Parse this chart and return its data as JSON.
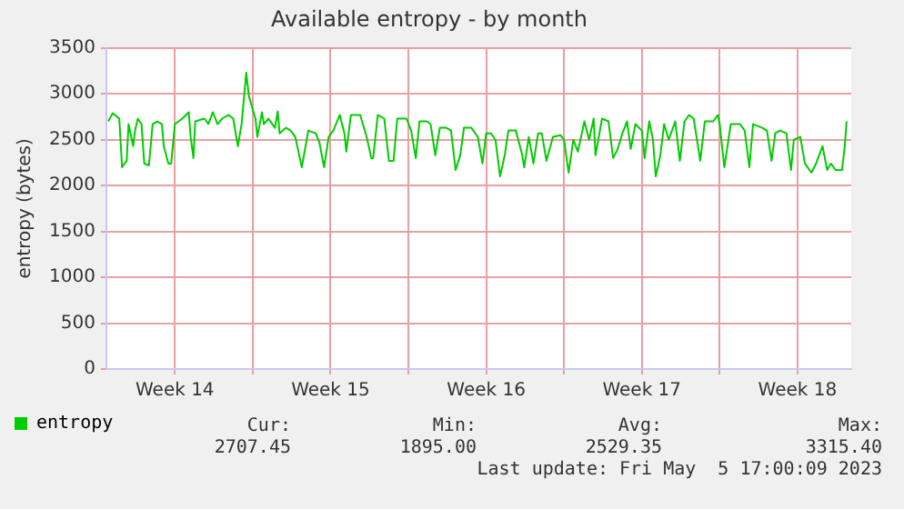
{
  "chart_data": {
    "type": "line",
    "title": "Available entropy - by month",
    "ylabel": "entropy (bytes)",
    "xlim": [
      "2023-04-03T12:00",
      "2023-05-07T00:00"
    ],
    "xticks": [
      {
        "value": "2023-04-06T14:00",
        "label": "Week 14"
      },
      {
        "value": "2023-04-10T02:00",
        "label": null
      },
      {
        "value": "2023-04-13T14:00",
        "label": "Week 15"
      },
      {
        "value": "2023-04-17T02:00",
        "label": null
      },
      {
        "value": "2023-04-20T14:00",
        "label": "Week 16"
      },
      {
        "value": "2023-04-24T02:00",
        "label": null
      },
      {
        "value": "2023-04-27T14:00",
        "label": "Week 17"
      },
      {
        "value": "2023-05-01T02:00",
        "label": null
      },
      {
        "value": "2023-05-04T14:00",
        "label": "Week 18"
      }
    ],
    "ylim": [
      0,
      3500
    ],
    "yticks": [
      0,
      500,
      1000,
      1500,
      2000,
      2500,
      3000,
      3500
    ],
    "grid": true,
    "legend": "bottom left",
    "marker": "none",
    "line_style": "solid",
    "series": [
      {
        "name": "entropy",
        "color": "#00cc00",
        "x": [
          "2023-04-03T14:00",
          "2023-04-03T19:00",
          "2023-04-04T02:00",
          "2023-04-04T05:00",
          "2023-04-04T10:00",
          "2023-04-04T12:00",
          "2023-04-04T17:00",
          "2023-04-04T19:00",
          "2023-04-04T22:00",
          "2023-04-05T02:00",
          "2023-04-05T05:00",
          "2023-04-05T10:00",
          "2023-04-05T14:00",
          "2023-04-05T19:00",
          "2023-04-06T00:00",
          "2023-04-06T02:00",
          "2023-04-06T07:00",
          "2023-04-06T10:00",
          "2023-04-06T14:00",
          "2023-04-06T22:00",
          "2023-04-07T05:00",
          "2023-04-07T07:00",
          "2023-04-07T10:00",
          "2023-04-07T12:00",
          "2023-04-07T22:00",
          "2023-04-08T02:00",
          "2023-04-08T07:00",
          "2023-04-08T12:00",
          "2023-04-08T17:00",
          "2023-04-09T00:00",
          "2023-04-09T05:00",
          "2023-04-09T10:00",
          "2023-04-09T14:00",
          "2023-04-09T19:00",
          "2023-04-09T22:00",
          "2023-04-10T05:00",
          "2023-04-10T07:00",
          "2023-04-10T12:00",
          "2023-04-10T14:00",
          "2023-04-10T19:00",
          "2023-04-11T02:00",
          "2023-04-11T05:00",
          "2023-04-11T07:00",
          "2023-04-11T14:00",
          "2023-04-11T19:00",
          "2023-04-12T00:00",
          "2023-04-12T07:00",
          "2023-04-12T14:00",
          "2023-04-12T22:00",
          "2023-04-13T02:00",
          "2023-04-13T07:00",
          "2023-04-13T12:00",
          "2023-04-13T17:00",
          "2023-04-14T00:00",
          "2023-04-14T05:00",
          "2023-04-14T07:00",
          "2023-04-14T12:00",
          "2023-04-14T22:00",
          "2023-04-15T05:00",
          "2023-04-15T10:00",
          "2023-04-15T12:00",
          "2023-04-15T17:00",
          "2023-04-16T00:00",
          "2023-04-16T05:00",
          "2023-04-16T10:00",
          "2023-04-16T14:00",
          "2023-04-17T00:00",
          "2023-04-17T05:00",
          "2023-04-17T10:00",
          "2023-04-17T14:00",
          "2023-04-17T22:00",
          "2023-04-18T02:00",
          "2023-04-18T07:00",
          "2023-04-18T12:00",
          "2023-04-18T19:00",
          "2023-04-19T00:00",
          "2023-04-19T05:00",
          "2023-04-19T10:00",
          "2023-04-19T14:00",
          "2023-04-19T22:00",
          "2023-04-20T05:00",
          "2023-04-20T10:00",
          "2023-04-20T14:00",
          "2023-04-20T19:00",
          "2023-04-21T00:00",
          "2023-04-21T05:00",
          "2023-04-21T10:00",
          "2023-04-21T14:00",
          "2023-04-21T22:00",
          "2023-04-22T05:00",
          "2023-04-22T07:00",
          "2023-04-22T12:00",
          "2023-04-22T17:00",
          "2023-04-22T22:00",
          "2023-04-23T02:00",
          "2023-04-23T07:00",
          "2023-04-23T14:00",
          "2023-04-23T22:00",
          "2023-04-24T02:00",
          "2023-04-24T07:00",
          "2023-04-24T12:00",
          "2023-04-24T17:00",
          "2023-04-25T00:00",
          "2023-04-25T05:00",
          "2023-04-25T10:00",
          "2023-04-25T12:00",
          "2023-04-25T19:00",
          "2023-04-26T02:00",
          "2023-04-26T07:00",
          "2023-04-26T12:00",
          "2023-04-26T17:00",
          "2023-04-26T22:00",
          "2023-04-27T02:00",
          "2023-04-27T07:00",
          "2023-04-27T14:00",
          "2023-04-27T17:00",
          "2023-04-27T22:00",
          "2023-04-28T02:00",
          "2023-04-28T05:00",
          "2023-04-28T10:00",
          "2023-04-28T14:00",
          "2023-04-28T19:00",
          "2023-04-29T02:00",
          "2023-04-29T07:00",
          "2023-04-29T12:00",
          "2023-04-29T17:00",
          "2023-04-29T22:00",
          "2023-04-30T05:00",
          "2023-04-30T10:00",
          "2023-04-30T19:00",
          "2023-05-01T00:00",
          "2023-05-01T02:00",
          "2023-05-01T07:00",
          "2023-05-01T14:00",
          "2023-05-02T00:00",
          "2023-05-02T05:00",
          "2023-05-02T10:00",
          "2023-05-02T14:00",
          "2023-05-03T00:00",
          "2023-05-03T05:00",
          "2023-05-03T10:00",
          "2023-05-03T14:00",
          "2023-05-03T19:00",
          "2023-05-04T02:00",
          "2023-05-04T07:00",
          "2023-05-04T10:00",
          "2023-05-04T17:00",
          "2023-05-04T22:00",
          "2023-05-05T05:00",
          "2023-05-05T10:00",
          "2023-05-05T17:00",
          "2023-05-05T22:00",
          "2023-05-06T02:00",
          "2023-05-06T07:00",
          "2023-05-06T14:00",
          "2023-05-06T17:00",
          "2023-05-06T19:00"
        ],
        "values": [
          2700,
          2790,
          2730,
          2200,
          2270,
          2670,
          2430,
          2600,
          2730,
          2670,
          2240,
          2220,
          2670,
          2700,
          2670,
          2430,
          2240,
          2240,
          2670,
          2730,
          2800,
          2530,
          2300,
          2700,
          2730,
          2670,
          2800,
          2670,
          2730,
          2770,
          2730,
          2430,
          2670,
          3230,
          2970,
          2730,
          2530,
          2800,
          2670,
          2730,
          2630,
          2810,
          2570,
          2630,
          2600,
          2530,
          2200,
          2600,
          2570,
          2470,
          2200,
          2530,
          2600,
          2770,
          2570,
          2370,
          2770,
          2770,
          2530,
          2300,
          2300,
          2770,
          2730,
          2270,
          2270,
          2730,
          2730,
          2600,
          2300,
          2700,
          2700,
          2670,
          2330,
          2630,
          2630,
          2600,
          2170,
          2330,
          2630,
          2630,
          2530,
          2240,
          2570,
          2570,
          2500,
          2100,
          2330,
          2600,
          2600,
          2330,
          2200,
          2530,
          2240,
          2570,
          2570,
          2270,
          2530,
          2550,
          2500,
          2140,
          2500,
          2370,
          2700,
          2500,
          2730,
          2330,
          2730,
          2700,
          2300,
          2400,
          2570,
          2700,
          2400,
          2670,
          2600,
          2300,
          2700,
          2500,
          2100,
          2330,
          2670,
          2500,
          2700,
          2270,
          2700,
          2770,
          2730,
          2270,
          2700,
          2700,
          2770,
          2670,
          2200,
          2670,
          2670,
          2600,
          2200,
          2670,
          2630,
          2600,
          2270,
          2570,
          2600,
          2570,
          2170,
          2500,
          2530,
          2240,
          2140,
          2240,
          2430,
          2170,
          2240,
          2170,
          2170,
          2430,
          2700
        ]
      }
    ],
    "annotations": [
      "Cur:",
      "2707.45",
      "Min:",
      "1895.00",
      "Avg:",
      "2529.35",
      "Max:",
      "3315.40",
      "Last update: Fri May  5 17:00:09 2023"
    ]
  }
}
